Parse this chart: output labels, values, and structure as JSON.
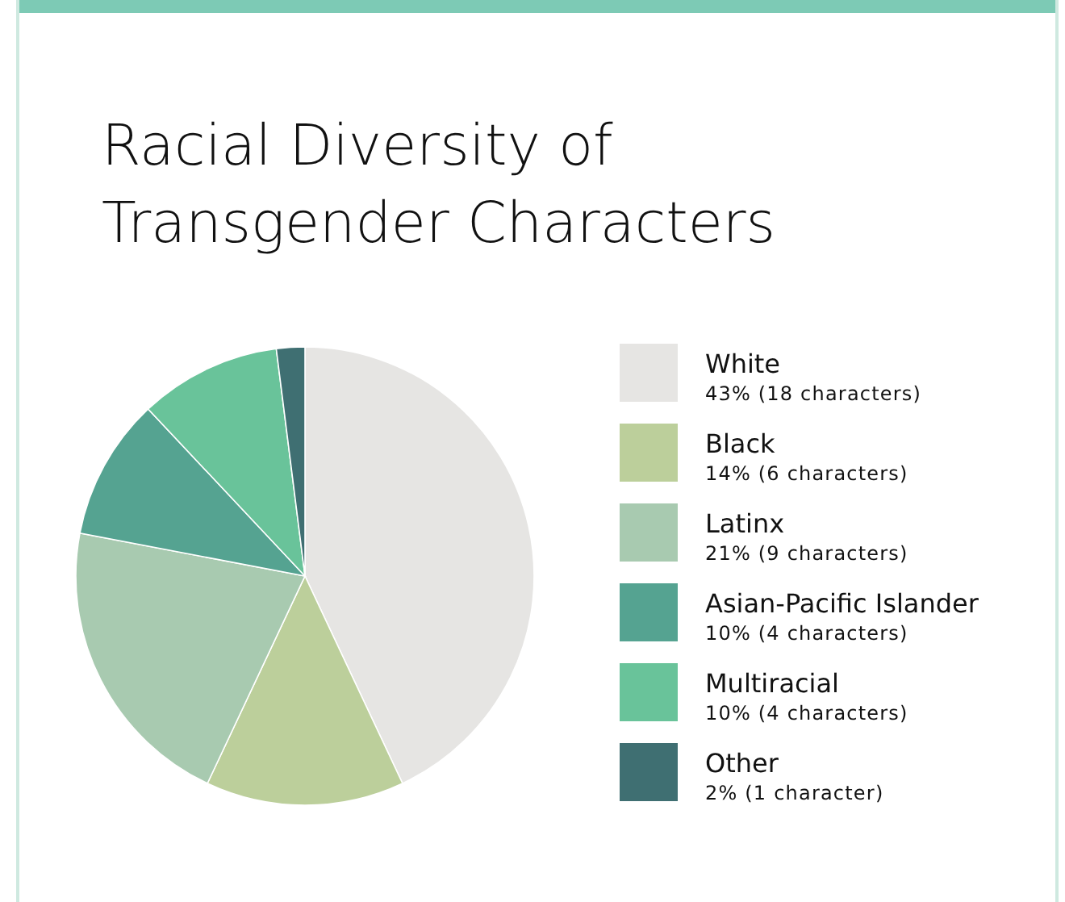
{
  "chart_data": {
    "type": "pie",
    "title": "Racial Diversity of Transgender Characters",
    "categories": [
      "White",
      "Black",
      "Latinx",
      "Asian-Pacific Islander",
      "Multiracial",
      "Other"
    ],
    "values": [
      43,
      14,
      21,
      10,
      10,
      2
    ],
    "value_labels": [
      "43% (18 characters)",
      "14% (6 characters)",
      "21% (9 characters)",
      "10% (4 characters)",
      "10% (4 characters)",
      "2% (1 character)"
    ],
    "colors": [
      "#e6e5e3",
      "#bccf9b",
      "#a8cab0",
      "#55a391",
      "#69c39a",
      "#3f6f72"
    ],
    "legend": "right"
  }
}
